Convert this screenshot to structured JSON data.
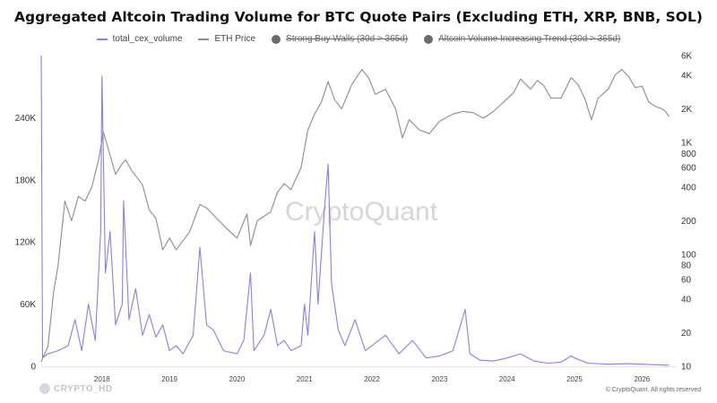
{
  "chart_data": {
    "type": "line",
    "title": "Aggregated Altcoin Trading Volume for BTC Quote Pairs (Excluding ETH, XRP, BNB, SOL)",
    "legend": [
      {
        "name": "total_cex_volume",
        "color": "#8a7fe6",
        "active": true
      },
      {
        "name": "ETH Price",
        "color": "#8c8c8c",
        "active": true
      },
      {
        "name": "Strong Buy Walls (30d > 365d)",
        "color": "#6b6b6b",
        "active": false
      },
      {
        "name": "Altcoin Volume Increasing Trend (30d > 365d)",
        "color": "#6b6b6b",
        "active": false
      }
    ],
    "legend_position": "top-center",
    "watermark": "CryptoQuant",
    "corner_watermark": "CRYPTO_HD",
    "copyright": "© CryptoQuant. All rights reserved",
    "x_ticks": [
      "2018",
      "2019",
      "2020",
      "2021",
      "2022",
      "2023",
      "2024",
      "2025",
      "2026"
    ],
    "x_tick_years": [
      2018,
      2019,
      2020,
      2021,
      2022,
      2023,
      2024,
      2025,
      2026
    ],
    "x_range": [
      2017.1,
      2026.5
    ],
    "left_axis": {
      "scale": "linear",
      "range": [
        0,
        300000
      ],
      "ticks": [
        0,
        60000,
        120000,
        180000,
        240000
      ],
      "tick_labels": [
        "0",
        "60K",
        "120K",
        "180K",
        "240K"
      ]
    },
    "right_axis": {
      "scale": "log",
      "range": [
        10,
        6000
      ],
      "ticks": [
        10,
        20,
        40,
        60,
        80,
        100,
        200,
        400,
        600,
        800,
        1000,
        2000,
        4000,
        6000
      ],
      "tick_labels": [
        "10",
        "20",
        "40",
        "60",
        "80",
        "100",
        "200",
        "400",
        "600",
        "800",
        "1K",
        "2K",
        "4K",
        "6K"
      ]
    },
    "grid": false,
    "series": [
      {
        "name": "total_cex_volume",
        "axis": "left",
        "points": [
          [
            2017.1,
            300000
          ],
          [
            2017.12,
            8000
          ],
          [
            2017.2,
            12000
          ],
          [
            2017.35,
            15000
          ],
          [
            2017.5,
            20000
          ],
          [
            2017.6,
            45000
          ],
          [
            2017.7,
            15000
          ],
          [
            2017.8,
            60000
          ],
          [
            2017.9,
            25000
          ],
          [
            2017.98,
            130000
          ],
          [
            2018.0,
            280000
          ],
          [
            2018.05,
            90000
          ],
          [
            2018.12,
            130000
          ],
          [
            2018.2,
            40000
          ],
          [
            2018.3,
            60000
          ],
          [
            2018.32,
            160000
          ],
          [
            2018.4,
            45000
          ],
          [
            2018.5,
            75000
          ],
          [
            2018.6,
            30000
          ],
          [
            2018.7,
            50000
          ],
          [
            2018.8,
            28000
          ],
          [
            2018.9,
            40000
          ],
          [
            2019.0,
            15000
          ],
          [
            2019.1,
            20000
          ],
          [
            2019.2,
            12000
          ],
          [
            2019.35,
            30000
          ],
          [
            2019.45,
            115000
          ],
          [
            2019.55,
            40000
          ],
          [
            2019.65,
            35000
          ],
          [
            2019.8,
            15000
          ],
          [
            2020.0,
            12000
          ],
          [
            2020.1,
            25000
          ],
          [
            2020.2,
            90000
          ],
          [
            2020.25,
            15000
          ],
          [
            2020.4,
            30000
          ],
          [
            2020.5,
            55000
          ],
          [
            2020.6,
            20000
          ],
          [
            2020.7,
            25000
          ],
          [
            2020.8,
            15000
          ],
          [
            2020.95,
            20000
          ],
          [
            2021.0,
            60000
          ],
          [
            2021.05,
            30000
          ],
          [
            2021.15,
            130000
          ],
          [
            2021.2,
            60000
          ],
          [
            2021.3,
            155000
          ],
          [
            2021.35,
            195000
          ],
          [
            2021.4,
            80000
          ],
          [
            2021.5,
            35000
          ],
          [
            2021.6,
            20000
          ],
          [
            2021.75,
            45000
          ],
          [
            2021.9,
            15000
          ],
          [
            2022.0,
            20000
          ],
          [
            2022.2,
            30000
          ],
          [
            2022.4,
            12000
          ],
          [
            2022.6,
            25000
          ],
          [
            2022.8,
            8000
          ],
          [
            2023.0,
            10000
          ],
          [
            2023.2,
            15000
          ],
          [
            2023.38,
            55000
          ],
          [
            2023.45,
            12000
          ],
          [
            2023.6,
            6000
          ],
          [
            2023.8,
            5000
          ],
          [
            2024.0,
            8000
          ],
          [
            2024.2,
            12000
          ],
          [
            2024.4,
            5000
          ],
          [
            2024.6,
            3000
          ],
          [
            2024.8,
            4000
          ],
          [
            2024.95,
            10000
          ],
          [
            2025.0,
            8000
          ],
          [
            2025.2,
            3000
          ],
          [
            2025.5,
            2000
          ],
          [
            2025.8,
            2500
          ],
          [
            2026.2,
            1500
          ],
          [
            2026.4,
            1000
          ]
        ]
      },
      {
        "name": "ETH Price",
        "axis": "right",
        "points": [
          [
            2017.1,
            11
          ],
          [
            2017.2,
            15
          ],
          [
            2017.28,
            45
          ],
          [
            2017.35,
            80
          ],
          [
            2017.45,
            300
          ],
          [
            2017.55,
            200
          ],
          [
            2017.65,
            330
          ],
          [
            2017.75,
            300
          ],
          [
            2017.85,
            400
          ],
          [
            2017.95,
            700
          ],
          [
            2018.02,
            1250
          ],
          [
            2018.1,
            850
          ],
          [
            2018.2,
            520
          ],
          [
            2018.3,
            650
          ],
          [
            2018.35,
            700
          ],
          [
            2018.45,
            550
          ],
          [
            2018.6,
            420
          ],
          [
            2018.7,
            250
          ],
          [
            2018.8,
            210
          ],
          [
            2018.9,
            110
          ],
          [
            2019.0,
            140
          ],
          [
            2019.1,
            110
          ],
          [
            2019.3,
            160
          ],
          [
            2019.45,
            280
          ],
          [
            2019.55,
            260
          ],
          [
            2019.7,
            210
          ],
          [
            2019.85,
            170
          ],
          [
            2020.0,
            140
          ],
          [
            2020.15,
            230
          ],
          [
            2020.2,
            120
          ],
          [
            2020.3,
            200
          ],
          [
            2020.5,
            240
          ],
          [
            2020.6,
            360
          ],
          [
            2020.7,
            430
          ],
          [
            2020.8,
            380
          ],
          [
            2020.95,
            600
          ],
          [
            2021.05,
            1300
          ],
          [
            2021.15,
            1800
          ],
          [
            2021.25,
            2300
          ],
          [
            2021.35,
            3500
          ],
          [
            2021.45,
            2400
          ],
          [
            2021.55,
            2000
          ],
          [
            2021.7,
            3300
          ],
          [
            2021.85,
            4500
          ],
          [
            2021.95,
            3800
          ],
          [
            2022.05,
            2700
          ],
          [
            2022.2,
            3000
          ],
          [
            2022.35,
            2000
          ],
          [
            2022.45,
            1100
          ],
          [
            2022.55,
            1600
          ],
          [
            2022.7,
            1300
          ],
          [
            2022.85,
            1200
          ],
          [
            2023.0,
            1550
          ],
          [
            2023.2,
            1800
          ],
          [
            2023.35,
            1900
          ],
          [
            2023.5,
            1850
          ],
          [
            2023.65,
            1650
          ],
          [
            2023.8,
            1900
          ],
          [
            2023.95,
            2300
          ],
          [
            2024.1,
            2800
          ],
          [
            2024.2,
            3700
          ],
          [
            2024.35,
            3000
          ],
          [
            2024.45,
            3600
          ],
          [
            2024.55,
            3200
          ],
          [
            2024.65,
            2500
          ],
          [
            2024.8,
            2500
          ],
          [
            2024.95,
            3800
          ],
          [
            2025.05,
            3300
          ],
          [
            2025.15,
            2500
          ],
          [
            2025.25,
            1600
          ],
          [
            2025.35,
            2500
          ],
          [
            2025.5,
            3000
          ],
          [
            2025.6,
            4000
          ],
          [
            2025.7,
            4500
          ],
          [
            2025.8,
            3900
          ],
          [
            2025.9,
            3100
          ],
          [
            2026.0,
            3200
          ],
          [
            2026.1,
            2300
          ],
          [
            2026.2,
            2100
          ],
          [
            2026.3,
            2000
          ],
          [
            2026.35,
            1900
          ],
          [
            2026.4,
            1700
          ]
        ]
      }
    ]
  }
}
